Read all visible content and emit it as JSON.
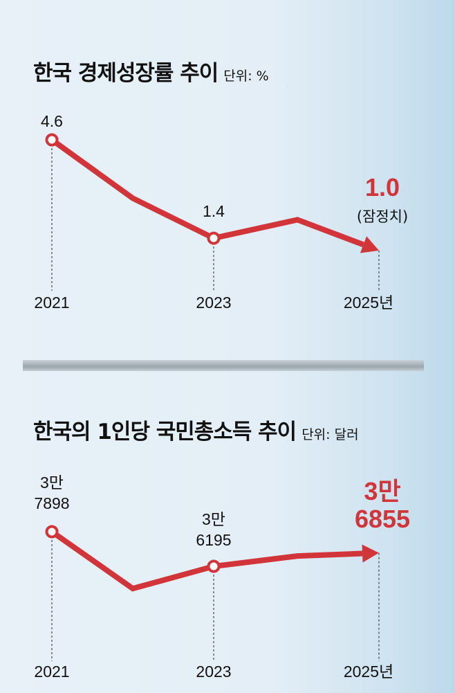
{
  "chart_data": [
    {
      "type": "line",
      "title": "한국 경제성장률 추이",
      "unit": "단위: %",
      "x": [
        "2021",
        "2022",
        "2023",
        "2024",
        "2025"
      ],
      "values": [
        4.6,
        2.7,
        1.4,
        2.0,
        1.0
      ],
      "point_labels": {
        "0": [
          "4.6"
        ],
        "2": [
          "1.4"
        ],
        "4": [
          "1.0"
        ]
      },
      "final_note": "(잠정치)",
      "xtick_labels": [
        "2021",
        "2023",
        "2025년"
      ],
      "ylim": [
        0.5,
        5
      ]
    },
    {
      "type": "line",
      "title": "한국의 1인당 국민총소득 추이",
      "unit": "단위: 달러",
      "x": [
        "2021",
        "2022",
        "2023",
        "2024",
        "2025"
      ],
      "values": [
        37898,
        35100,
        36195,
        36700,
        36855
      ],
      "point_labels": {
        "0": [
          "3만",
          "7898"
        ],
        "2": [
          "3만",
          "6195"
        ],
        "4": [
          "3만",
          "6855"
        ]
      },
      "xtick_labels": [
        "2021",
        "2023",
        "2025년"
      ],
      "ylim": [
        34000,
        39000
      ]
    }
  ],
  "colors": {
    "line": "#d1353a",
    "highlight": "#d1353a"
  }
}
